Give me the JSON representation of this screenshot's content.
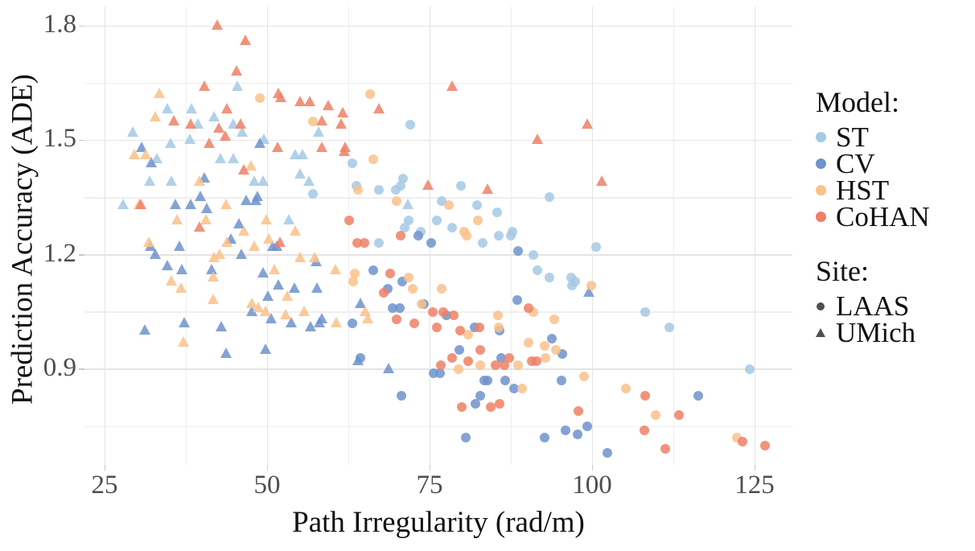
{
  "chart_data": {
    "type": "scatter",
    "title": "",
    "xlabel": "Path Irregularity (rad/m)",
    "ylabel": "Prediction Accuracy (ADE)",
    "xlim": [
      21.9,
      130.8
    ],
    "ylim": [
      0.65,
      1.85
    ],
    "grid": "on",
    "x_axis": {
      "tick_values": [
        25,
        50,
        75,
        100,
        125
      ],
      "tick_labels": [
        "25",
        "50",
        "75",
        "100",
        "125"
      ],
      "minor_tick_values": [
        37.5,
        62.5,
        87.5,
        112.5
      ]
    },
    "y_axis": {
      "tick_values": [
        1.8,
        1.5,
        1.2,
        0.9
      ],
      "tick_labels": [
        "1.8",
        "1.5",
        "1.2",
        "0.9"
      ],
      "minor_tick_values": [
        1.65,
        1.35,
        1.05,
        0.75
      ]
    },
    "legend": {
      "position": "right",
      "model_title": "Model:",
      "models": [
        {
          "label": "ST",
          "color": "#a5c9e4"
        },
        {
          "label": "CV",
          "color": "#6f93cb"
        },
        {
          "label": "HST",
          "color": "#fac189"
        },
        {
          "label": "CoHAN",
          "color": "#ee8065"
        }
      ],
      "site_title": "Site:",
      "sites": [
        {
          "label": "LAAS",
          "shape": "circle"
        },
        {
          "label": "UMich",
          "shape": "triangle"
        }
      ],
      "site_marker_color": "#4f4f4f"
    },
    "series": [
      {
        "name": "ST-LAAS",
        "model": "ST",
        "site": "LAAS",
        "shape": "circle",
        "color": "#a5c9e4",
        "points": [
          [
            57.1,
            1.36
          ],
          [
            72.0,
            1.54
          ],
          [
            63.1,
            1.44
          ],
          [
            70.9,
            1.4
          ],
          [
            63.7,
            1.38
          ],
          [
            67.2,
            1.37
          ],
          [
            69.8,
            1.37
          ],
          [
            70.5,
            1.38
          ],
          [
            79.8,
            1.38
          ],
          [
            93.4,
            1.35
          ],
          [
            76.9,
            1.34
          ],
          [
            82.3,
            1.33
          ],
          [
            85.4,
            1.31
          ],
          [
            76.1,
            1.29
          ],
          [
            71.8,
            1.29
          ],
          [
            71.2,
            1.27
          ],
          [
            73.6,
            1.26
          ],
          [
            78.5,
            1.27
          ],
          [
            87.7,
            1.26
          ],
          [
            67.2,
            1.23
          ],
          [
            83.2,
            1.23
          ],
          [
            85.6,
            1.25
          ],
          [
            87.5,
            1.25
          ],
          [
            91.0,
            1.2
          ],
          [
            91.6,
            1.16
          ],
          [
            93.4,
            1.14
          ],
          [
            100.6,
            1.22
          ],
          [
            96.8,
            1.14
          ],
          [
            97.4,
            1.13
          ],
          [
            96.9,
            1.12
          ],
          [
            108.2,
            1.05
          ],
          [
            111.9,
            1.01
          ],
          [
            124.3,
            0.9
          ]
        ]
      },
      {
        "name": "ST-UMich",
        "model": "ST",
        "site": "UMich",
        "shape": "triangle",
        "color": "#a5c9e4",
        "points": [
          [
            45.4,
            1.64
          ],
          [
            34.7,
            1.58
          ],
          [
            38.4,
            1.58
          ],
          [
            41.8,
            1.56
          ],
          [
            39.4,
            1.54
          ],
          [
            44.8,
            1.54
          ],
          [
            29.3,
            1.52
          ],
          [
            46.2,
            1.52
          ],
          [
            57.9,
            1.52
          ],
          [
            38.1,
            1.5
          ],
          [
            49.5,
            1.5
          ],
          [
            35.2,
            1.49
          ],
          [
            54.3,
            1.46
          ],
          [
            55.4,
            1.46
          ],
          [
            33.0,
            1.45
          ],
          [
            42.8,
            1.45
          ],
          [
            44.8,
            1.45
          ],
          [
            55.1,
            1.41
          ],
          [
            31.9,
            1.39
          ],
          [
            35.3,
            1.39
          ],
          [
            48.0,
            1.39
          ],
          [
            49.4,
            1.39
          ],
          [
            56.4,
            1.39
          ],
          [
            27.8,
            1.33
          ],
          [
            53.3,
            1.29
          ],
          [
            71.6,
            1.33
          ]
        ]
      },
      {
        "name": "CV-LAAS",
        "model": "CV",
        "site": "LAAS",
        "shape": "circle",
        "color": "#6f93cb",
        "points": [
          [
            73.3,
            1.25
          ],
          [
            75.2,
            1.23
          ],
          [
            88.6,
            1.21
          ],
          [
            66.3,
            1.16
          ],
          [
            70.8,
            1.13
          ],
          [
            68.6,
            1.11
          ],
          [
            88.5,
            1.08
          ],
          [
            74.1,
            1.07
          ],
          [
            69.3,
            1.06
          ],
          [
            70.4,
            1.06
          ],
          [
            77.6,
            1.04
          ],
          [
            63.1,
            1.02
          ],
          [
            81.9,
            1.01
          ],
          [
            85.8,
            1.0
          ],
          [
            93.8,
            0.98
          ],
          [
            79.6,
            0.95
          ],
          [
            95.4,
            0.94
          ],
          [
            86.0,
            0.93
          ],
          [
            64.3,
            0.93
          ],
          [
            75.6,
            0.89
          ],
          [
            76.6,
            0.89
          ],
          [
            83.4,
            0.87
          ],
          [
            83.9,
            0.87
          ],
          [
            86.6,
            0.87
          ],
          [
            95.3,
            0.87
          ],
          [
            88.0,
            0.85
          ],
          [
            70.7,
            0.83
          ],
          [
            82.8,
            0.83
          ],
          [
            116.3,
            0.83
          ],
          [
            82.1,
            0.81
          ],
          [
            99.3,
            0.75
          ],
          [
            95.9,
            0.74
          ],
          [
            97.8,
            0.73
          ],
          [
            80.6,
            0.72
          ],
          [
            92.7,
            0.72
          ],
          [
            102.3,
            0.68
          ]
        ]
      },
      {
        "name": "CV-UMich",
        "model": "CV",
        "site": "UMich",
        "shape": "triangle",
        "color": "#6f93cb",
        "points": [
          [
            30.7,
            1.48
          ],
          [
            48.9,
            1.49
          ],
          [
            32.2,
            1.44
          ],
          [
            40.3,
            1.4
          ],
          [
            39.7,
            1.35
          ],
          [
            48.5,
            1.35
          ],
          [
            46.8,
            1.34
          ],
          [
            48.3,
            1.34
          ],
          [
            35.9,
            1.33
          ],
          [
            38.2,
            1.33
          ],
          [
            40.7,
            1.32
          ],
          [
            45.7,
            1.28
          ],
          [
            44.4,
            1.24
          ],
          [
            32.1,
            1.22
          ],
          [
            36.5,
            1.22
          ],
          [
            50.9,
            1.22
          ],
          [
            51.5,
            1.22
          ],
          [
            32.8,
            1.2
          ],
          [
            46.0,
            1.2
          ],
          [
            57.6,
            1.18
          ],
          [
            34.7,
            1.17
          ],
          [
            36.9,
            1.16
          ],
          [
            41.5,
            1.16
          ],
          [
            49.4,
            1.15
          ],
          [
            51.7,
            1.12
          ],
          [
            54.2,
            1.11
          ],
          [
            57.7,
            1.11
          ],
          [
            99.5,
            1.1
          ],
          [
            50.1,
            1.09
          ],
          [
            64.4,
            1.07
          ],
          [
            47.6,
            1.05
          ],
          [
            58.4,
            1.03
          ],
          [
            50.6,
            1.03
          ],
          [
            53.7,
            1.02
          ],
          [
            56.7,
            1.01
          ],
          [
            58.0,
            1.02
          ],
          [
            31.2,
            1.0
          ],
          [
            37.2,
            1.02
          ],
          [
            42.9,
            1.01
          ],
          [
            49.8,
            0.95
          ],
          [
            43.7,
            0.94
          ],
          [
            64.0,
            0.92
          ],
          [
            68.7,
            0.9
          ]
        ]
      },
      {
        "name": "HST-LAAS",
        "model": "HST",
        "site": "LAAS",
        "shape": "circle",
        "color": "#fac189",
        "points": [
          [
            65.8,
            1.62
          ],
          [
            48.9,
            1.61
          ],
          [
            57.0,
            1.55
          ],
          [
            66.3,
            1.45
          ],
          [
            64.0,
            1.37
          ],
          [
            69.9,
            1.34
          ],
          [
            78.0,
            1.33
          ],
          [
            82.4,
            1.29
          ],
          [
            80.3,
            1.26
          ],
          [
            80.7,
            1.25
          ],
          [
            63.5,
            1.15
          ],
          [
            63.2,
            1.13
          ],
          [
            71.8,
            1.14
          ],
          [
            99.9,
            1.12
          ],
          [
            72.4,
            1.11
          ],
          [
            76.9,
            1.11
          ],
          [
            73.8,
            1.07
          ],
          [
            91.0,
            1.05
          ],
          [
            85.5,
            1.04
          ],
          [
            94.2,
            1.03
          ],
          [
            85.6,
            1.01
          ],
          [
            80.9,
            0.99
          ],
          [
            90.2,
            0.97
          ],
          [
            92.7,
            0.96
          ],
          [
            94.4,
            0.95
          ],
          [
            92.8,
            0.93
          ],
          [
            79.4,
            0.9
          ],
          [
            82.8,
            0.91
          ],
          [
            88.6,
            0.91
          ],
          [
            98.8,
            0.88
          ],
          [
            89.2,
            0.85
          ],
          [
            105.2,
            0.85
          ],
          [
            109.8,
            0.78
          ],
          [
            122.3,
            0.72
          ]
        ]
      },
      {
        "name": "HST-UMich",
        "model": "HST",
        "site": "UMich",
        "shape": "triangle",
        "color": "#fac189",
        "points": [
          [
            33.4,
            1.62
          ],
          [
            32.8,
            1.56
          ],
          [
            29.6,
            1.46
          ],
          [
            31.3,
            1.46
          ],
          [
            47.5,
            1.43
          ],
          [
            39.6,
            1.39
          ],
          [
            30.3,
            1.33
          ],
          [
            43.7,
            1.33
          ],
          [
            36.1,
            1.29
          ],
          [
            40.6,
            1.29
          ],
          [
            49.9,
            1.29
          ],
          [
            46.4,
            1.26
          ],
          [
            54.3,
            1.26
          ],
          [
            50.3,
            1.24
          ],
          [
            31.8,
            1.23
          ],
          [
            43.8,
            1.23
          ],
          [
            48.0,
            1.22
          ],
          [
            42.7,
            1.2
          ],
          [
            41.8,
            1.19
          ],
          [
            55.1,
            1.19
          ],
          [
            57.3,
            1.19
          ],
          [
            51.1,
            1.16
          ],
          [
            60.5,
            1.16
          ],
          [
            41.7,
            1.14
          ],
          [
            35.3,
            1.13
          ],
          [
            36.8,
            1.11
          ],
          [
            53.1,
            1.09
          ],
          [
            41.7,
            1.08
          ],
          [
            47.7,
            1.07
          ],
          [
            48.6,
            1.06
          ],
          [
            49.7,
            1.05
          ],
          [
            55.7,
            1.05
          ],
          [
            65.1,
            1.05
          ],
          [
            52.8,
            1.04
          ],
          [
            60.6,
            1.02
          ],
          [
            65.5,
            1.03
          ],
          [
            37.1,
            0.97
          ]
        ]
      },
      {
        "name": "CoHAN-LAAS",
        "model": "CoHAN",
        "site": "LAAS",
        "shape": "circle",
        "color": "#ee8065",
        "points": [
          [
            62.6,
            1.29
          ],
          [
            63.9,
            1.23
          ],
          [
            65.0,
            1.23
          ],
          [
            70.5,
            1.25
          ],
          [
            68.9,
            1.15
          ],
          [
            67.9,
            1.1
          ],
          [
            90.2,
            1.06
          ],
          [
            75.5,
            1.05
          ],
          [
            77.1,
            1.05
          ],
          [
            78.7,
            1.04
          ],
          [
            69.9,
            1.03
          ],
          [
            72.7,
            1.02
          ],
          [
            82.7,
            1.01
          ],
          [
            76.1,
            1.01
          ],
          [
            79.7,
            1.0
          ],
          [
            82.8,
            0.95
          ],
          [
            78.5,
            0.93
          ],
          [
            87.2,
            0.93
          ],
          [
            80.9,
            0.92
          ],
          [
            90.7,
            0.92
          ],
          [
            91.5,
            0.92
          ],
          [
            76.7,
            0.91
          ],
          [
            85.1,
            0.91
          ],
          [
            86.5,
            0.91
          ],
          [
            108.2,
            0.83
          ],
          [
            85.8,
            0.81
          ],
          [
            80.0,
            0.8
          ],
          [
            84.4,
            0.8
          ],
          [
            97.9,
            0.79
          ],
          [
            113.4,
            0.78
          ],
          [
            108.1,
            0.74
          ],
          [
            123.1,
            0.71
          ],
          [
            126.6,
            0.7
          ],
          [
            111.3,
            0.69
          ]
        ]
      },
      {
        "name": "CoHAN-UMich",
        "model": "CoHAN",
        "site": "UMich",
        "shape": "triangle",
        "color": "#ee8065",
        "points": [
          [
            42.3,
            1.8
          ],
          [
            46.7,
            1.76
          ],
          [
            45.3,
            1.68
          ],
          [
            40.3,
            1.64
          ],
          [
            78.5,
            1.64
          ],
          [
            51.7,
            1.62
          ],
          [
            52.1,
            1.61
          ],
          [
            55.1,
            1.6
          ],
          [
            56.6,
            1.6
          ],
          [
            59.4,
            1.59
          ],
          [
            43.8,
            1.58
          ],
          [
            67.2,
            1.58
          ],
          [
            61.6,
            1.57
          ],
          [
            35.6,
            1.55
          ],
          [
            58.4,
            1.55
          ],
          [
            38.2,
            1.54
          ],
          [
            45.9,
            1.54
          ],
          [
            61.4,
            1.54
          ],
          [
            99.3,
            1.54
          ],
          [
            42.6,
            1.53
          ],
          [
            43.6,
            1.51
          ],
          [
            91.6,
            1.5
          ],
          [
            41.1,
            1.49
          ],
          [
            51.6,
            1.48
          ],
          [
            58.4,
            1.48
          ],
          [
            62.0,
            1.48
          ],
          [
            61.9,
            1.47
          ],
          [
            46.4,
            1.42
          ],
          [
            101.5,
            1.39
          ],
          [
            74.7,
            1.38
          ],
          [
            83.9,
            1.37
          ],
          [
            30.6,
            1.33
          ],
          [
            39.6,
            1.27
          ],
          [
            52.0,
            1.23
          ]
        ]
      }
    ]
  }
}
